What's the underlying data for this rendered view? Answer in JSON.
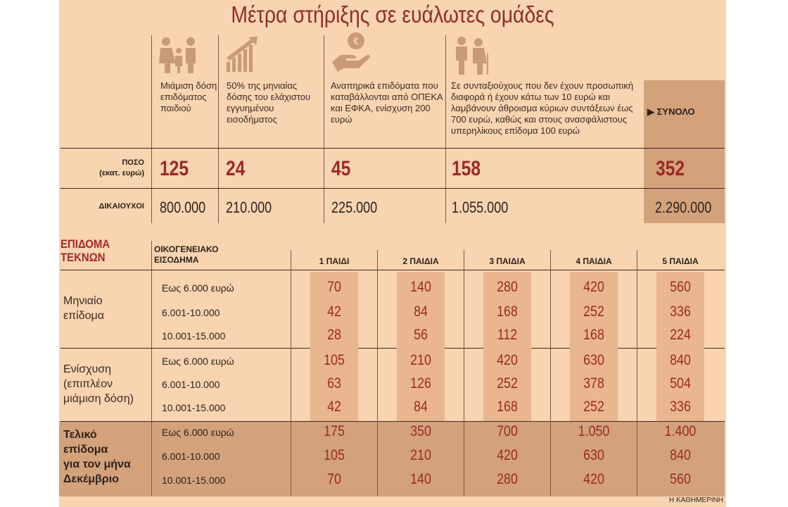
{
  "title": "Μέτρα στήριξης σε ευάλωτες ομάδες",
  "measures": [
    {
      "icon": "family-icon",
      "text": "Μιάμιση δόση επιδόματος παιδιού",
      "amount": "125",
      "beneficiaries": "800.000"
    },
    {
      "icon": "growth-chart-icon",
      "text": "50% της μηνιαίας δόσης του ελάχιστου εγγυημένου εισοδήματος",
      "amount": "24",
      "beneficiaries": "210.000"
    },
    {
      "icon": "hand-euro-icon",
      "text": "Αναπηρικά επιδόματα που καταβάλλονται από ΟΠΕΚΑ και ΕΦΚΑ, ενίσχυση 200 ευρώ",
      "amount": "45",
      "beneficiaries": "225.000"
    },
    {
      "icon": "elderly-couple-icon",
      "text": "Σε συνταξιούχους που δεν έχουν προσωπική διαφορά ή έχουν κάτω των 10 ευρώ και λαμβάνουν άθροισμα κύριων συντάξεων έως 700 ευρώ, καθώς και στους ανασφάλιστους υπερηλίκους επίδομα 100 ευρώ",
      "amount": "158",
      "beneficiaries": "1.055.000"
    }
  ],
  "total": {
    "label": "ΣΥΝΟΛΟ",
    "amount": "352",
    "beneficiaries": "2.290.000"
  },
  "row_labels": {
    "amount": "ΠΟΣΟ",
    "amount_unit": "(εκατ. ευρώ)",
    "beneficiaries": "ΔΙΚΑΙΟΥΧΟΙ"
  },
  "benefit_table": {
    "title_line1": "ΕΠΙΔΟΜΑ",
    "title_line2": "ΤΕΚΝΩΝ",
    "income_header_line1": "ΟΙΚΟΓΕΝΕΙΑΚΟ",
    "income_header_line2": "ΕΙΣΟΔΗΜΑ",
    "columns": [
      "1 ΠΑΙΔΙ",
      "2 ΠΑΙΔΙΑ",
      "3 ΠΑΙΔΙΑ",
      "4 ΠΑΙΔΙΑ",
      "5 ΠΑΙΔΙΑ"
    ],
    "income_brackets": [
      "Εως 6.000 ευρώ",
      "6.001-10.000",
      "10.001-15.000"
    ],
    "groups": [
      {
        "label_lines": [
          "Μηνιαίο",
          "επίδομα"
        ],
        "rows": [
          [
            "70",
            "140",
            "280",
            "420",
            "560"
          ],
          [
            "42",
            "84",
            "168",
            "252",
            "336"
          ],
          [
            "28",
            "56",
            "112",
            "168",
            "224"
          ]
        ]
      },
      {
        "label_lines": [
          "Ενίσχυση",
          "(επιπλέον",
          "μιάμιση δόση)"
        ],
        "rows": [
          [
            "105",
            "210",
            "420",
            "630",
            "840"
          ],
          [
            "63",
            "126",
            "252",
            "378",
            "504"
          ],
          [
            "42",
            "84",
            "168",
            "252",
            "336"
          ]
        ]
      },
      {
        "label_lines": [
          "Τελικό",
          "επίδομα",
          "για τον μήνα",
          "Δεκέμβριο"
        ],
        "rows": [
          [
            "175",
            "350",
            "700",
            "1.050",
            "1.400"
          ],
          [
            "105",
            "210",
            "420",
            "630",
            "840"
          ],
          [
            "70",
            "140",
            "280",
            "420",
            "560"
          ]
        ]
      }
    ]
  },
  "credit": "Η ΚΑΘΗΜΕΡΙΝΗ",
  "colors": {
    "accent": "#9a2a25",
    "background": "#f8d4b1",
    "highlight": "#d3a27b",
    "band": "#eab68f"
  }
}
